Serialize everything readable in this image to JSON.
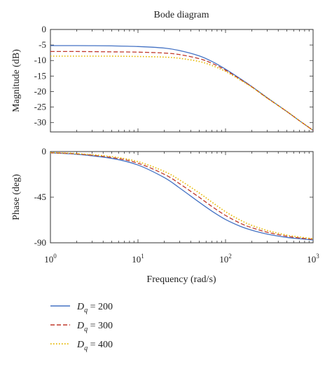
{
  "chart_data": [
    {
      "type": "line",
      "title": "Bode diagram",
      "ylabel": "Magnitude (dB)",
      "xlabel": "",
      "xscale": "log",
      "xlim": [
        1,
        1000
      ],
      "ylim": [
        -33,
        0
      ],
      "yticks": [
        "0",
        "-5",
        "-10",
        "-15",
        "-20",
        "-25",
        "-30"
      ],
      "x": [
        1,
        2,
        5,
        10,
        20,
        30,
        50,
        70,
        100,
        150,
        200,
        300,
        500,
        700,
        1000
      ],
      "series": [
        {
          "name": "D_q = 200",
          "color": "#4472c4",
          "dash": "solid",
          "values": [
            -5.2,
            -5.2,
            -5.3,
            -5.5,
            -6.0,
            -6.8,
            -8.5,
            -10.3,
            -12.8,
            -16.0,
            -18.4,
            -22.0,
            -26.4,
            -29.4,
            -32.5
          ]
        },
        {
          "name": "D_q = 300",
          "color": "#c0392b",
          "dash": "dashed",
          "values": [
            -7.1,
            -7.1,
            -7.2,
            -7.3,
            -7.6,
            -8.1,
            -9.4,
            -10.9,
            -13.1,
            -16.2,
            -18.5,
            -22.1,
            -26.4,
            -29.4,
            -32.5
          ]
        },
        {
          "name": "D_q = 400",
          "color": "#e6b800",
          "dash": "dotted",
          "values": [
            -8.6,
            -8.6,
            -8.6,
            -8.7,
            -8.9,
            -9.3,
            -10.3,
            -11.6,
            -13.5,
            -16.4,
            -18.6,
            -22.1,
            -26.4,
            -29.4,
            -32.5
          ]
        }
      ]
    },
    {
      "type": "line",
      "title": "",
      "ylabel": "Phase (deg)",
      "xlabel": "Frequency (rad/s)",
      "xscale": "log",
      "xlim": [
        1,
        1000
      ],
      "ylim": [
        -90,
        0
      ],
      "yticks": [
        "0",
        "-45",
        "-90"
      ],
      "xticks": [
        "1",
        "10",
        "100",
        "1000"
      ],
      "x": [
        1,
        2,
        5,
        10,
        20,
        30,
        50,
        70,
        100,
        150,
        200,
        300,
        500,
        700,
        1000
      ],
      "series": [
        {
          "name": "D_q = 200",
          "color": "#4472c4",
          "dash": "solid",
          "values": [
            -1.3,
            -2.7,
            -6.7,
            -13.3,
            -25.7,
            -36.0,
            -50.0,
            -58.8,
            -67.0,
            -74.0,
            -77.6,
            -81.4,
            -84.7,
            -86.0,
            -87.2
          ]
        },
        {
          "name": "D_q = 300",
          "color": "#c0392b",
          "dash": "dashed",
          "values": [
            -1.2,
            -2.3,
            -5.8,
            -11.5,
            -22.4,
            -31.8,
            -45.1,
            -54.2,
            -63.0,
            -71.0,
            -75.1,
            -79.6,
            -83.5,
            -85.2,
            -86.6
          ]
        },
        {
          "name": "D_q = 400",
          "color": "#e6b800",
          "dash": "dotted",
          "values": [
            -1.0,
            -2.0,
            -5.0,
            -10.0,
            -19.6,
            -28.1,
            -40.8,
            -49.9,
            -59.3,
            -68.0,
            -72.8,
            -77.9,
            -82.4,
            -84.3,
            -86.0
          ]
        }
      ]
    }
  ],
  "axis_tick_labels": {
    "x": [
      {
        "base": "10",
        "exp": "0"
      },
      {
        "base": "10",
        "exp": "1"
      },
      {
        "base": "10",
        "exp": "2"
      },
      {
        "base": "10",
        "exp": "3"
      }
    ]
  },
  "legend": [
    {
      "prefix": "D",
      "subscript": "q",
      "suffix": " = 200",
      "color": "#4472c4",
      "dash": "solid"
    },
    {
      "prefix": "D",
      "subscript": "q",
      "suffix": " = 300",
      "color": "#c0392b",
      "dash": "dashed"
    },
    {
      "prefix": "D",
      "subscript": "q",
      "suffix": " = 400",
      "color": "#e6b800",
      "dash": "dotted"
    }
  ]
}
